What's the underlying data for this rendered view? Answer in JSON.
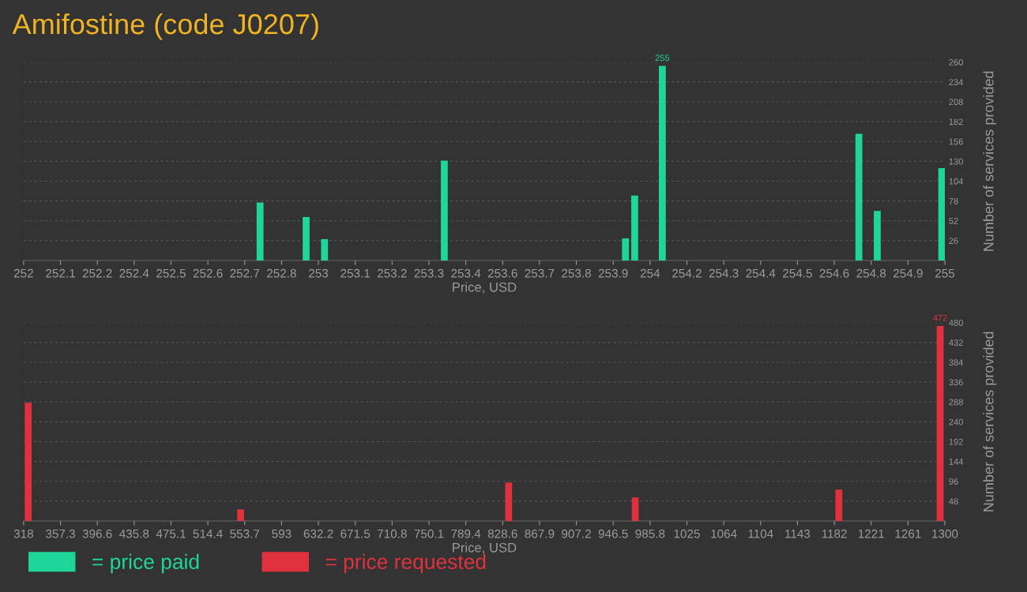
{
  "chart_data": [
    {
      "type": "bar",
      "title": "Amifostine (code J0207)",
      "xlabel": "Price, USD",
      "ylabel": "Number of services provided",
      "x": [
        252.77,
        252.92,
        252.98,
        253.37,
        253.96,
        253.99,
        254.08,
        254.72,
        254.78,
        254.99
      ],
      "series": [
        {
          "name": "= price paid",
          "color": "#1fd69a",
          "values": [
            76,
            57,
            28,
            131,
            29,
            85,
            255,
            166,
            65,
            121
          ],
          "value_labels": [
            null,
            null,
            null,
            null,
            null,
            null,
            "255",
            null,
            null,
            null
          ]
        }
      ],
      "xlim": [
        252,
        255
      ],
      "xticks": [
        252,
        {
          "value": 252.12,
          "label": "252.1"
        },
        {
          "value": 252.24,
          "label": "252.2"
        },
        {
          "value": 252.36,
          "label": "252.4"
        },
        {
          "value": 252.48,
          "label": "252.5"
        },
        252.6,
        {
          "value": 252.72,
          "label": "252.7"
        },
        {
          "value": 252.84,
          "label": "252.8"
        },
        {
          "value": 252.96,
          "label": "253"
        },
        {
          "value": 253.08,
          "label": "253.1"
        },
        253.2,
        {
          "value": 253.32,
          "label": "253.3"
        },
        {
          "value": 253.44,
          "label": "253.4"
        },
        {
          "value": 253.56,
          "label": "253.6"
        },
        {
          "value": 253.68,
          "label": "253.7"
        },
        253.8,
        {
          "value": 253.92,
          "label": "253.9"
        },
        {
          "value": 254.04,
          "label": "254"
        },
        {
          "value": 254.16,
          "label": "254.2"
        },
        {
          "value": 254.28,
          "label": "254.3"
        },
        254.4,
        {
          "value": 254.52,
          "label": "254.5"
        },
        {
          "value": 254.64,
          "label": "254.6"
        },
        {
          "value": 254.76,
          "label": "254.8"
        },
        {
          "value": 254.88,
          "label": "254.9"
        },
        255
      ],
      "ylim": [
        0,
        260
      ],
      "yticks": [
        26,
        52,
        78,
        104,
        130,
        156,
        182,
        208,
        234,
        260
      ],
      "grid": "y",
      "legend": "bottom left"
    },
    {
      "type": "bar",
      "xlabel": "Price, USD",
      "ylabel": "Number of services provided",
      "x": [
        322.9,
        549.3,
        835,
        970,
        1187,
        1295
      ],
      "series": [
        {
          "name": "= price requested",
          "color": "#e0313f",
          "values": [
            286,
            28,
            93,
            57,
            76,
            472
          ],
          "value_labels": [
            null,
            null,
            null,
            null,
            null,
            "472"
          ]
        }
      ],
      "xlim": [
        318,
        1300
      ],
      "xticks": [
        318,
        {
          "value": 357.28,
          "label": "357.3"
        },
        {
          "value": 396.56,
          "label": "396.6"
        },
        {
          "value": 435.84,
          "label": "435.8"
        },
        {
          "value": 475.12,
          "label": "475.1"
        },
        514.4,
        {
          "value": 553.68,
          "label": "553.7"
        },
        {
          "value": 592.96,
          "label": "593"
        },
        {
          "value": 632.24,
          "label": "632.2"
        },
        {
          "value": 671.52,
          "label": "671.5"
        },
        710.8,
        {
          "value": 750.08,
          "label": "750.1"
        },
        {
          "value": 789.36,
          "label": "789.4"
        },
        {
          "value": 828.64,
          "label": "828.6"
        },
        {
          "value": 867.92,
          "label": "867.9"
        },
        907.2,
        {
          "value": 946.48,
          "label": "946.5"
        },
        {
          "value": 985.76,
          "label": "985.8"
        },
        {
          "value": 1025.04,
          "label": "1025"
        },
        {
          "value": 1064.32,
          "label": "1064"
        },
        {
          "value": 1103.6,
          "label": "1104"
        },
        {
          "value": 1142.88,
          "label": "1143"
        },
        {
          "value": 1182.16,
          "label": "1182"
        },
        {
          "value": 1221.44,
          "label": "1221"
        },
        {
          "value": 1260.72,
          "label": "1261"
        },
        1300
      ],
      "ylim": [
        0,
        480
      ],
      "yticks": [
        48,
        96,
        144,
        192,
        240,
        288,
        336,
        384,
        432,
        480
      ],
      "grid": "y",
      "legend": "bottom left"
    }
  ]
}
